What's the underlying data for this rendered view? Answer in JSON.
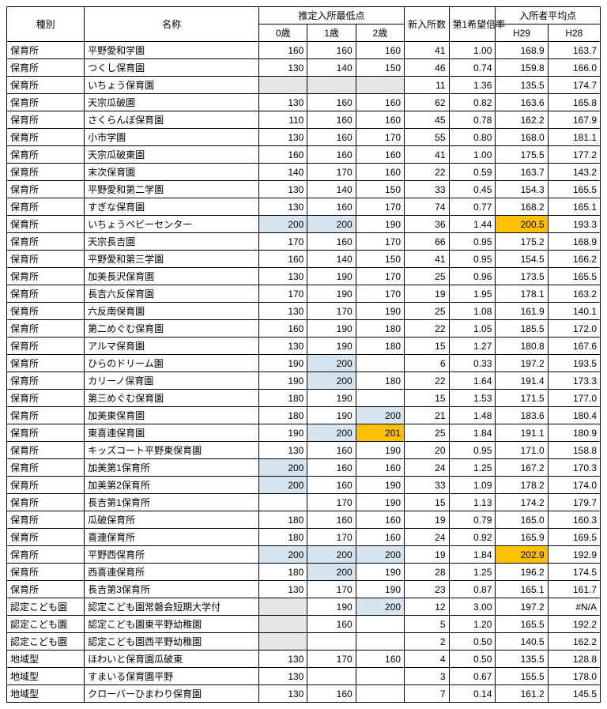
{
  "headers": {
    "type": "種別",
    "name": "名称",
    "min_group": "推定入所最低点",
    "age0": "0歳",
    "age1": "1歳",
    "age2": "2歳",
    "new": "新入所数",
    "ratio": "第1希望倍率",
    "avg_group": "入所者平均点",
    "h29": "H29",
    "h28": "H28"
  },
  "colors": {
    "hl_blue": "#d6e4f0",
    "hl_orange": "#ffc000",
    "hl_gray": "#e6e6e6"
  },
  "rows": [
    {
      "type": "保育所",
      "name": "平野愛和学園",
      "a0": {
        "v": "160"
      },
      "a1": {
        "v": "160"
      },
      "a2": {
        "v": "160"
      },
      "new": "41",
      "ratio": "1.00",
      "h29": {
        "v": "168.9"
      },
      "h28": "163.7"
    },
    {
      "type": "保育所",
      "name": "つくし保育園",
      "a0": {
        "v": "130"
      },
      "a1": {
        "v": "140"
      },
      "a2": {
        "v": "150"
      },
      "new": "46",
      "ratio": "0.74",
      "h29": {
        "v": "159.8"
      },
      "h28": "166.0"
    },
    {
      "type": "保育所",
      "name": "いちょう保育園",
      "a0": {
        "v": "",
        "hl": "gray"
      },
      "a1": {
        "v": "",
        "hl": "gray"
      },
      "a2": {
        "v": "",
        "hl": "gray"
      },
      "new": "11",
      "ratio": "1.36",
      "h29": {
        "v": "135.5"
      },
      "h28": "174.7"
    },
    {
      "type": "保育所",
      "name": "天宗瓜破園",
      "a0": {
        "v": "130"
      },
      "a1": {
        "v": "160"
      },
      "a2": {
        "v": "160"
      },
      "new": "62",
      "ratio": "0.82",
      "h29": {
        "v": "163.6"
      },
      "h28": "165.8"
    },
    {
      "type": "保育所",
      "name": "さくらんぼ保育園",
      "a0": {
        "v": "110"
      },
      "a1": {
        "v": "160"
      },
      "a2": {
        "v": "160"
      },
      "new": "45",
      "ratio": "0.78",
      "h29": {
        "v": "162.2"
      },
      "h28": "167.9"
    },
    {
      "type": "保育所",
      "name": "小市学園",
      "a0": {
        "v": "130"
      },
      "a1": {
        "v": "160"
      },
      "a2": {
        "v": "170"
      },
      "new": "55",
      "ratio": "0.80",
      "h29": {
        "v": "168.0"
      },
      "h28": "181.1"
    },
    {
      "type": "保育所",
      "name": "天宗瓜破東園",
      "a0": {
        "v": "160"
      },
      "a1": {
        "v": "160"
      },
      "a2": {
        "v": "160"
      },
      "new": "41",
      "ratio": "1.00",
      "h29": {
        "v": "175.5"
      },
      "h28": "177.2"
    },
    {
      "type": "保育所",
      "name": "末次保育園",
      "a0": {
        "v": "140"
      },
      "a1": {
        "v": "170"
      },
      "a2": {
        "v": "160"
      },
      "new": "22",
      "ratio": "0.59",
      "h29": {
        "v": "163.7"
      },
      "h28": "143.2"
    },
    {
      "type": "保育所",
      "name": "平野愛和第二学園",
      "a0": {
        "v": "130"
      },
      "a1": {
        "v": "140"
      },
      "a2": {
        "v": "150"
      },
      "new": "33",
      "ratio": "0.45",
      "h29": {
        "v": "154.3"
      },
      "h28": "165.5"
    },
    {
      "type": "保育所",
      "name": "すぎな保育園",
      "a0": {
        "v": "130"
      },
      "a1": {
        "v": "160"
      },
      "a2": {
        "v": "170"
      },
      "new": "74",
      "ratio": "0.77",
      "h29": {
        "v": "168.2"
      },
      "h28": "165.1"
    },
    {
      "type": "保育所",
      "name": "いちょうベビーセンター",
      "a0": {
        "v": "200",
        "hl": "blue"
      },
      "a1": {
        "v": "200",
        "hl": "blue"
      },
      "a2": {
        "v": "190"
      },
      "new": "36",
      "ratio": "1.44",
      "h29": {
        "v": "200.5",
        "hl": "orange"
      },
      "h28": "193.3"
    },
    {
      "type": "保育所",
      "name": "天宗長吉園",
      "a0": {
        "v": "170"
      },
      "a1": {
        "v": "160"
      },
      "a2": {
        "v": "170"
      },
      "new": "66",
      "ratio": "0.95",
      "h29": {
        "v": "175.2"
      },
      "h28": "168.9"
    },
    {
      "type": "保育所",
      "name": "平野愛和第三学園",
      "a0": {
        "v": "160"
      },
      "a1": {
        "v": "140"
      },
      "a2": {
        "v": "150"
      },
      "new": "41",
      "ratio": "0.95",
      "h29": {
        "v": "154.5"
      },
      "h28": "166.2"
    },
    {
      "type": "保育所",
      "name": "加美長沢保育園",
      "a0": {
        "v": "130"
      },
      "a1": {
        "v": "190"
      },
      "a2": {
        "v": "170"
      },
      "new": "25",
      "ratio": "0.96",
      "h29": {
        "v": "173.5"
      },
      "h28": "165.5"
    },
    {
      "type": "保育所",
      "name": "長吉六反保育園",
      "a0": {
        "v": "170"
      },
      "a1": {
        "v": "190"
      },
      "a2": {
        "v": "170"
      },
      "new": "19",
      "ratio": "1.95",
      "h29": {
        "v": "178.1"
      },
      "h28": "163.2"
    },
    {
      "type": "保育所",
      "name": "六反南保育園",
      "a0": {
        "v": "130"
      },
      "a1": {
        "v": "170"
      },
      "a2": {
        "v": "190"
      },
      "new": "25",
      "ratio": "1.08",
      "h29": {
        "v": "161.9"
      },
      "h28": "140.1"
    },
    {
      "type": "保育所",
      "name": "第二めぐむ保育園",
      "a0": {
        "v": "160"
      },
      "a1": {
        "v": "190"
      },
      "a2": {
        "v": "180"
      },
      "new": "22",
      "ratio": "1.05",
      "h29": {
        "v": "185.5"
      },
      "h28": "172.0"
    },
    {
      "type": "保育所",
      "name": "アルマ保育園",
      "a0": {
        "v": "130"
      },
      "a1": {
        "v": "190"
      },
      "a2": {
        "v": "180"
      },
      "new": "15",
      "ratio": "1.27",
      "h29": {
        "v": "180.8"
      },
      "h28": "167.6"
    },
    {
      "type": "保育所",
      "name": "ひらのドリーム園",
      "a0": {
        "v": "190"
      },
      "a1": {
        "v": "200",
        "hl": "blue"
      },
      "a2": {
        "v": ""
      },
      "new": "6",
      "ratio": "0.33",
      "h29": {
        "v": "197.2"
      },
      "h28": "193.5"
    },
    {
      "type": "保育所",
      "name": "カリーノ保育園",
      "a0": {
        "v": "190"
      },
      "a1": {
        "v": "200",
        "hl": "blue"
      },
      "a2": {
        "v": "180"
      },
      "new": "22",
      "ratio": "1.64",
      "h29": {
        "v": "191.4"
      },
      "h28": "173.3"
    },
    {
      "type": "保育所",
      "name": "第三めぐむ保育園",
      "a0": {
        "v": "180"
      },
      "a1": {
        "v": "190"
      },
      "a2": {
        "v": ""
      },
      "new": "15",
      "ratio": "1.53",
      "h29": {
        "v": "171.5"
      },
      "h28": "177.0"
    },
    {
      "type": "保育所",
      "name": "加美東保育園",
      "a0": {
        "v": "180"
      },
      "a1": {
        "v": "190"
      },
      "a2": {
        "v": "200",
        "hl": "blue"
      },
      "new": "21",
      "ratio": "1.48",
      "h29": {
        "v": "183.6"
      },
      "h28": "180.4"
    },
    {
      "type": "保育所",
      "name": "東喜連保育園",
      "a0": {
        "v": "190"
      },
      "a1": {
        "v": "200",
        "hl": "blue"
      },
      "a2": {
        "v": "201",
        "hl": "orange"
      },
      "new": "25",
      "ratio": "1.84",
      "h29": {
        "v": "191.1"
      },
      "h28": "180.9"
    },
    {
      "type": "保育所",
      "name": "キッズコート平野東保育園",
      "a0": {
        "v": "130"
      },
      "a1": {
        "v": "160"
      },
      "a2": {
        "v": "190"
      },
      "new": "20",
      "ratio": "0.95",
      "h29": {
        "v": "171.0"
      },
      "h28": "158.8"
    },
    {
      "type": "保育所",
      "name": "加美第1保育所",
      "a0": {
        "v": "200",
        "hl": "blue"
      },
      "a1": {
        "v": "160"
      },
      "a2": {
        "v": "160"
      },
      "new": "24",
      "ratio": "1.25",
      "h29": {
        "v": "167.2"
      },
      "h28": "170.3"
    },
    {
      "type": "保育所",
      "name": "加美第2保育所",
      "a0": {
        "v": "200",
        "hl": "blue"
      },
      "a1": {
        "v": "160"
      },
      "a2": {
        "v": "190"
      },
      "new": "33",
      "ratio": "1.09",
      "h29": {
        "v": "178.2"
      },
      "h28": "174.0"
    },
    {
      "type": "保育所",
      "name": "長吉第1保育所",
      "a0": {
        "v": ""
      },
      "a1": {
        "v": "170"
      },
      "a2": {
        "v": "190"
      },
      "new": "15",
      "ratio": "1.13",
      "h29": {
        "v": "174.2"
      },
      "h28": "179.7"
    },
    {
      "type": "保育所",
      "name": "瓜破保育所",
      "a0": {
        "v": "180"
      },
      "a1": {
        "v": "160"
      },
      "a2": {
        "v": "160"
      },
      "new": "19",
      "ratio": "0.79",
      "h29": {
        "v": "165.0"
      },
      "h28": "160.3"
    },
    {
      "type": "保育所",
      "name": "喜連保育所",
      "a0": {
        "v": "180"
      },
      "a1": {
        "v": "170"
      },
      "a2": {
        "v": "160"
      },
      "new": "24",
      "ratio": "0.92",
      "h29": {
        "v": "165.9"
      },
      "h28": "169.5"
    },
    {
      "type": "保育所",
      "name": "平野西保育所",
      "a0": {
        "v": "200",
        "hl": "blue"
      },
      "a1": {
        "v": "200",
        "hl": "blue"
      },
      "a2": {
        "v": "200",
        "hl": "blue"
      },
      "new": "19",
      "ratio": "1.84",
      "h29": {
        "v": "202.9",
        "hl": "orange"
      },
      "h28": "192.9"
    },
    {
      "type": "保育所",
      "name": "西喜連保育所",
      "a0": {
        "v": "180"
      },
      "a1": {
        "v": "200",
        "hl": "blue"
      },
      "a2": {
        "v": "190"
      },
      "new": "28",
      "ratio": "1.25",
      "h29": {
        "v": "196.2"
      },
      "h28": "174.5"
    },
    {
      "type": "保育所",
      "name": "長吉第3保育所",
      "a0": {
        "v": "130"
      },
      "a1": {
        "v": "170"
      },
      "a2": {
        "v": "190"
      },
      "new": "23",
      "ratio": "0.87",
      "h29": {
        "v": "165.1"
      },
      "h28": "161.7"
    },
    {
      "type": "認定こども園",
      "name": "認定こども園常磐会短期大学付",
      "a0": {
        "v": "",
        "hl": "gray"
      },
      "a1": {
        "v": "190"
      },
      "a2": {
        "v": "200",
        "hl": "blue"
      },
      "new": "12",
      "ratio": "3.00",
      "h29": {
        "v": "197.2"
      },
      "h28": "#N/A"
    },
    {
      "type": "認定こども園",
      "name": "認定こども園東平野幼稚園",
      "a0": {
        "v": "",
        "hl": "gray"
      },
      "a1": {
        "v": "160"
      },
      "a2": {
        "v": ""
      },
      "new": "5",
      "ratio": "1.20",
      "h29": {
        "v": "165.5"
      },
      "h28": "192.2"
    },
    {
      "type": "認定こども園",
      "name": "認定こども園西平野幼稚園",
      "a0": {
        "v": "",
        "hl": "gray"
      },
      "a1": {
        "v": ""
      },
      "a2": {
        "v": ""
      },
      "new": "2",
      "ratio": "0.50",
      "h29": {
        "v": "140.5"
      },
      "h28": "162.2"
    },
    {
      "type": "地域型",
      "name": "ほわいと保育園瓜破東",
      "a0": {
        "v": "130"
      },
      "a1": {
        "v": "170"
      },
      "a2": {
        "v": "160"
      },
      "new": "4",
      "ratio": "0.50",
      "h29": {
        "v": "135.5"
      },
      "h28": "128.8"
    },
    {
      "type": "地域型",
      "name": "すまいる保育園平野",
      "a0": {
        "v": "130"
      },
      "a1": {
        "v": ""
      },
      "a2": {
        "v": ""
      },
      "new": "3",
      "ratio": "0.67",
      "h29": {
        "v": "155.5"
      },
      "h28": "178.0"
    },
    {
      "type": "地域型",
      "name": "クローバーひまわり保育園",
      "a0": {
        "v": "130"
      },
      "a1": {
        "v": "160"
      },
      "a2": {
        "v": ""
      },
      "new": "7",
      "ratio": "0.14",
      "h29": {
        "v": "161.2"
      },
      "h28": "145.5"
    }
  ]
}
